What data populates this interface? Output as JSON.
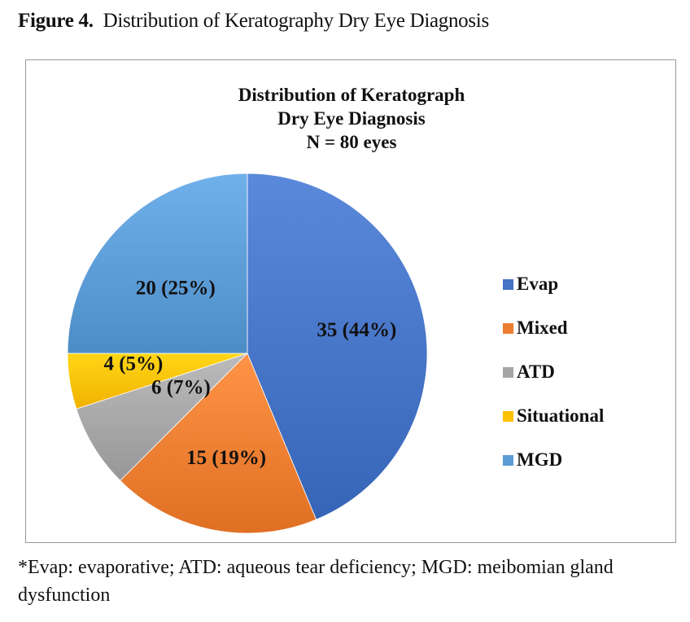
{
  "figure": {
    "label": "Figure 4.",
    "caption": "Distribution of Keratography Dry Eye Diagnosis"
  },
  "chart_data": {
    "type": "pie",
    "title_lines": [
      "Distribution of Keratograph",
      "Dry Eye Diagnosis",
      "N = 80 eyes"
    ],
    "total": 80,
    "start_angle_deg": 0,
    "direction": "clockwise",
    "slices": [
      {
        "label": "Evap",
        "value": 35,
        "percent": 44,
        "data_label": "35 (44%)",
        "color": "#4472C4"
      },
      {
        "label": "Mixed",
        "value": 15,
        "percent": 19,
        "data_label": "15 (19%)",
        "color": "#ED7D31"
      },
      {
        "label": "ATD",
        "value": 6,
        "percent": 7,
        "data_label": "6 (7%)",
        "color": "#A5A5A5"
      },
      {
        "label": "Situational",
        "value": 4,
        "percent": 5,
        "data_label": "4 (5%)",
        "color": "#FFC000"
      },
      {
        "label": "MGD",
        "value": 20,
        "percent": 25,
        "data_label": "20 (25%)",
        "color": "#5B9BD5"
      }
    ],
    "legend_position": "right"
  },
  "footnote": "*Evap: evaporative; ATD: aqueous tear deficiency; MGD: meibomian gland dysfunction"
}
